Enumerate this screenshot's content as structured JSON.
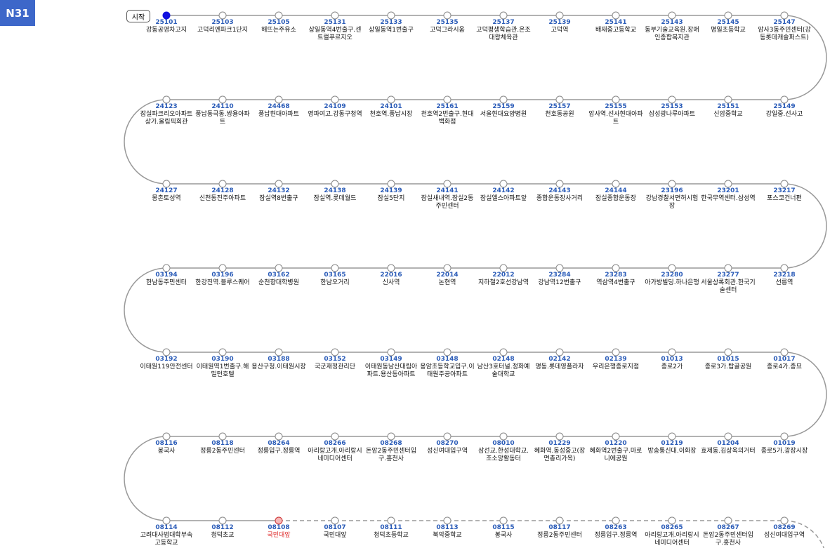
{
  "header": {
    "route": "N31",
    "start_label": "시작"
  },
  "stops": [
    {
      "code": "25101",
      "name": "강동공영차고지"
    },
    {
      "code": "25103",
      "name": "고덕리엔파크1단지"
    },
    {
      "code": "25105",
      "name": "해뜨는주유소"
    },
    {
      "code": "25131",
      "name": "상일동역4번출구.센트럴푸르지오"
    },
    {
      "code": "25133",
      "name": "상일동역1번출구"
    },
    {
      "code": "25135",
      "name": "고덕그라시움"
    },
    {
      "code": "25137",
      "name": "고덕평생학습관.온조대왕체육관"
    },
    {
      "code": "25139",
      "name": "고덕역"
    },
    {
      "code": "25141",
      "name": "배재중고등학교"
    },
    {
      "code": "25143",
      "name": "동부기술교육원.장애인종합복지관"
    },
    {
      "code": "25145",
      "name": "명일초등학교"
    },
    {
      "code": "25147",
      "name": "암사3동주민센터(강동롯데캐슬퍼스트)"
    },
    {
      "code": "25149",
      "name": "강일중.선사고"
    },
    {
      "code": "25151",
      "name": "신암중학교"
    },
    {
      "code": "25153",
      "name": "삼성광나루아파트"
    },
    {
      "code": "25155",
      "name": "암사역.선사현대아파트"
    },
    {
      "code": "25157",
      "name": "천호동공원"
    },
    {
      "code": "25159",
      "name": "서울현대요양병원"
    },
    {
      "code": "25161",
      "name": "천호역2번출구.현대백화점"
    },
    {
      "code": "24101",
      "name": "천호역.풍납시장"
    },
    {
      "code": "24109",
      "name": "영파여고.강동구청역"
    },
    {
      "code": "24468",
      "name": "풍납현대아파트"
    },
    {
      "code": "24110",
      "name": "풍납동극동.쌍용아파트"
    },
    {
      "code": "24123",
      "name": "잠실파크리오아파트상가.올림픽회관"
    },
    {
      "code": "24127",
      "name": "몽촌토성역"
    },
    {
      "code": "24128",
      "name": "신천동진주아파트"
    },
    {
      "code": "24132",
      "name": "잠실역8번출구"
    },
    {
      "code": "24138",
      "name": "잠실역.롯데월드"
    },
    {
      "code": "24139",
      "name": "잠실5단지"
    },
    {
      "code": "24141",
      "name": "잠실새내역.잠실2동주민센터"
    },
    {
      "code": "24142",
      "name": "잠실엘스아파트앞"
    },
    {
      "code": "24143",
      "name": "종합운동장사거리"
    },
    {
      "code": "24144",
      "name": "잠실종합운동장"
    },
    {
      "code": "23196",
      "name": "강남경찰서면허시험장"
    },
    {
      "code": "23201",
      "name": "한국무역센터.삼성역"
    },
    {
      "code": "23217",
      "name": "포스코건너편"
    },
    {
      "code": "23218",
      "name": "선릉역"
    },
    {
      "code": "23277",
      "name": "서울상록회관.한국기술센터"
    },
    {
      "code": "23280",
      "name": "아가방빌딩.하나은행"
    },
    {
      "code": "23283",
      "name": "역삼역4번출구"
    },
    {
      "code": "23284",
      "name": "강남역12번출구"
    },
    {
      "code": "22012",
      "name": "지하철2호선강남역"
    },
    {
      "code": "22014",
      "name": "논현역"
    },
    {
      "code": "22016",
      "name": "신사역"
    },
    {
      "code": "03165",
      "name": "한남오거리"
    },
    {
      "code": "03162",
      "name": "순천향대학병원"
    },
    {
      "code": "03196",
      "name": "한강진역.블루스퀘어"
    },
    {
      "code": "03194",
      "name": "한남동주민센터"
    },
    {
      "code": "03192",
      "name": "이태원119안전센터"
    },
    {
      "code": "03190",
      "name": "이태원역1번출구.해밀턴호텔"
    },
    {
      "code": "03188",
      "name": "용산구청.이태원시장"
    },
    {
      "code": "03152",
      "name": "국군재정관리단"
    },
    {
      "code": "03149",
      "name": "이태원동남산대림아파트.용산동아파트"
    },
    {
      "code": "03148",
      "name": "용암초등학교입구.이태원주공아파트"
    },
    {
      "code": "02148",
      "name": "남산3호터널.정화예술대학교"
    },
    {
      "code": "02142",
      "name": "명동.롯데영플라자"
    },
    {
      "code": "02139",
      "name": "우리은행종로지점"
    },
    {
      "code": "01013",
      "name": "종로2가"
    },
    {
      "code": "01015",
      "name": "종로3가.탑골공원"
    },
    {
      "code": "01017",
      "name": "종로4가.종묘"
    },
    {
      "code": "01019",
      "name": "종로5가.광장시장"
    },
    {
      "code": "01204",
      "name": "효제동.김상옥의거터"
    },
    {
      "code": "01219",
      "name": "방송통신대.이화장"
    },
    {
      "code": "01220",
      "name": "혜화역2번출구.마로니에공원"
    },
    {
      "code": "01229",
      "name": "혜화역.동성중고(장면총리가옥)"
    },
    {
      "code": "08010",
      "name": "삼선교.한성대학교.조소앙활동터"
    },
    {
      "code": "08270",
      "name": "성신여대입구역"
    },
    {
      "code": "08268",
      "name": "돈암2동주민센터입구.홍천사"
    },
    {
      "code": "08266",
      "name": "아리랑고개.아리랑시네미디어센터"
    },
    {
      "code": "08264",
      "name": "정릉입구.정릉역"
    },
    {
      "code": "08118",
      "name": "정릉2동주민센터"
    },
    {
      "code": "08116",
      "name": "봉국사"
    },
    {
      "code": "08114",
      "name": "고려대사범대학부속고등학교"
    },
    {
      "code": "08112",
      "name": "청덕초교"
    },
    {
      "code": "08108",
      "name": "국민대앞"
    },
    {
      "code": "08107",
      "name": "국민대앞"
    },
    {
      "code": "08111",
      "name": "청덕초등학교"
    },
    {
      "code": "08113",
      "name": "북악중학교"
    },
    {
      "code": "08115",
      "name": "봉국사"
    },
    {
      "code": "08117",
      "name": "정릉2동주민센터"
    },
    {
      "code": "08263",
      "name": "정릉입구.정릉역"
    },
    {
      "code": "08265",
      "name": "아리랑고개.아리랑시네미디어센터"
    },
    {
      "code": "08267",
      "name": "돈암2동주민센터입구.홍천사"
    },
    {
      "code": "08269",
      "name": "성신여대입구역"
    }
  ]
}
